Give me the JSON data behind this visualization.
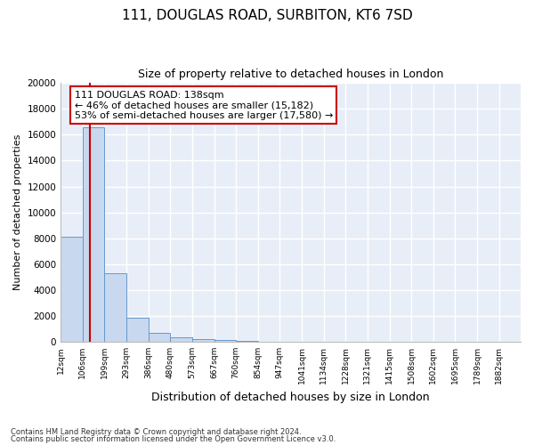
{
  "title": "111, DOUGLAS ROAD, SURBITON, KT6 7SD",
  "subtitle": "Size of property relative to detached houses in London",
  "xlabel": "Distribution of detached houses by size in London",
  "ylabel": "Number of detached properties",
  "bar_color": "#c8d8ee",
  "bar_edge_color": "#6699cc",
  "background_color": "#e8eef8",
  "grid_color": "#ffffff",
  "annotation_box_color": "#cc0000",
  "vline_color": "#cc0000",
  "footer1": "Contains HM Land Registry data © Crown copyright and database right 2024.",
  "footer2": "Contains public sector information licensed under the Open Government Licence v3.0.",
  "annotation_line1": "111 DOUGLAS ROAD: 138sqm",
  "annotation_line2": "← 46% of detached houses are smaller (15,182)",
  "annotation_line3": "53% of semi-detached houses are larger (17,580) →",
  "bin_labels": [
    "12sqm",
    "106sqm",
    "199sqm",
    "293sqm",
    "386sqm",
    "480sqm",
    "573sqm",
    "667sqm",
    "760sqm",
    "854sqm",
    "947sqm",
    "1041sqm",
    "1134sqm",
    "1228sqm",
    "1321sqm",
    "1415sqm",
    "1508sqm",
    "1602sqm",
    "1695sqm",
    "1789sqm",
    "1882sqm"
  ],
  "bin_values": [
    8100,
    16600,
    5300,
    1850,
    700,
    330,
    200,
    120,
    50,
    30,
    20,
    15,
    12,
    10,
    8,
    7,
    6,
    5,
    4,
    3,
    3
  ],
  "bin_edges": [
    12,
    106,
    199,
    293,
    386,
    480,
    573,
    667,
    760,
    854,
    947,
    1041,
    1134,
    1228,
    1321,
    1415,
    1508,
    1602,
    1695,
    1789,
    1882
  ],
  "vline_x": 138,
  "ylim": [
    0,
    20000
  ],
  "yticks": [
    0,
    2000,
    4000,
    6000,
    8000,
    10000,
    12000,
    14000,
    16000,
    18000,
    20000
  ]
}
